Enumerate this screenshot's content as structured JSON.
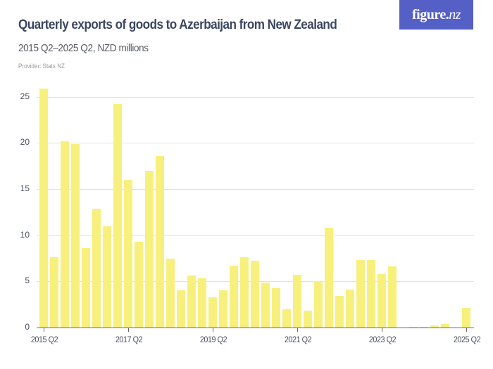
{
  "header": {
    "title": "Quarterly exports of goods to Azerbaijan from New Zealand",
    "subtitle": "2015 Q2–2025 Q2, NZD millions",
    "provider": "Provider: Stats NZ",
    "logo_main": "figure.",
    "logo_suffix": "nz"
  },
  "colors": {
    "bar": "#f8f07c",
    "logo_bg": "#5560c6",
    "title": "#3b4661"
  },
  "chart_data": {
    "type": "bar",
    "title": "Quarterly exports of goods to Azerbaijan from New Zealand",
    "subtitle": "2015 Q2–2025 Q2, NZD millions",
    "xlabel": "",
    "ylabel": "NZD millions",
    "ylim": [
      0,
      26
    ],
    "yticks": [
      0,
      5,
      10,
      15,
      20,
      25
    ],
    "grid": true,
    "legend": "none",
    "xtick_labels": [
      "2015 Q2",
      "2017 Q2",
      "2019 Q2",
      "2021 Q2",
      "2023 Q2",
      "2025 Q2"
    ],
    "categories": [
      "2015 Q2",
      "2015 Q3",
      "2015 Q4",
      "2016 Q1",
      "2016 Q2",
      "2016 Q3",
      "2016 Q4",
      "2017 Q1",
      "2017 Q2",
      "2017 Q3",
      "2017 Q4",
      "2018 Q1",
      "2018 Q2",
      "2018 Q3",
      "2018 Q4",
      "2019 Q1",
      "2019 Q2",
      "2019 Q3",
      "2019 Q4",
      "2020 Q1",
      "2020 Q2",
      "2020 Q3",
      "2020 Q4",
      "2021 Q1",
      "2021 Q2",
      "2021 Q3",
      "2021 Q4",
      "2022 Q1",
      "2022 Q2",
      "2022 Q3",
      "2022 Q4",
      "2023 Q1",
      "2023 Q2",
      "2023 Q3",
      "2023 Q4",
      "2024 Q1",
      "2024 Q2",
      "2024 Q3",
      "2024 Q4",
      "2025 Q1",
      "2025 Q2"
    ],
    "values": [
      25.9,
      7.6,
      20.2,
      19.9,
      8.6,
      12.9,
      11.0,
      24.2,
      16.0,
      9.3,
      17.0,
      18.6,
      7.5,
      4.0,
      5.6,
      5.3,
      3.3,
      4.0,
      6.7,
      7.6,
      7.2,
      4.9,
      4.3,
      2.0,
      5.7,
      1.8,
      5.0,
      10.8,
      3.4,
      4.1,
      7.3,
      7.3,
      5.8,
      6.6,
      0,
      0.1,
      0.1,
      0.2,
      0.4,
      0,
      2.1
    ]
  }
}
